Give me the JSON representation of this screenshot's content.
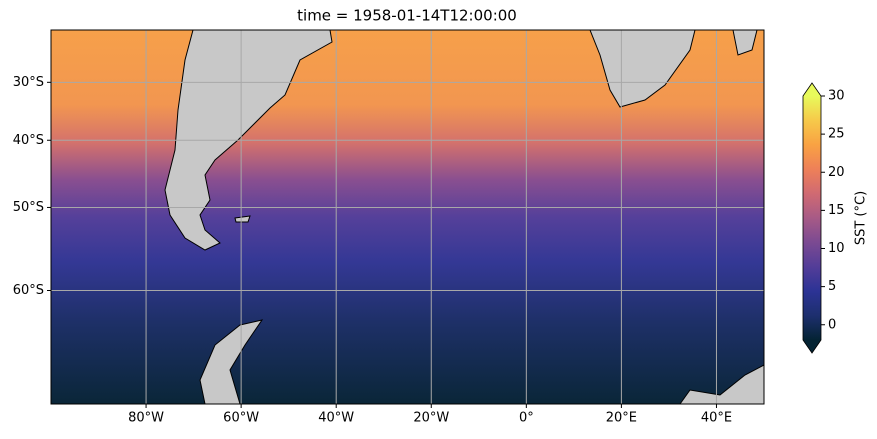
{
  "chart_data": {
    "type": "map",
    "title": "time = 1958-01-14T12:00:00",
    "projection": "mercator",
    "xlim": [
      -100,
      50
    ],
    "ylim": [
      -70,
      -20
    ],
    "xticks": [
      {
        "value": -80,
        "label": "80°W"
      },
      {
        "value": -60,
        "label": "60°W"
      },
      {
        "value": -40,
        "label": "40°W"
      },
      {
        "value": -20,
        "label": "20°W"
      },
      {
        "value": 0,
        "label": "0°"
      },
      {
        "value": 20,
        "label": "20°E"
      },
      {
        "value": 40,
        "label": "40°E"
      }
    ],
    "yticks": [
      {
        "value": -30,
        "label": "30°S"
      },
      {
        "value": -40,
        "label": "40°S"
      },
      {
        "value": -50,
        "label": "50°S"
      },
      {
        "value": -60,
        "label": "60°S"
      }
    ],
    "grid": true,
    "colorbar": {
      "label": "SST (°C)",
      "lim": [
        -2,
        30
      ],
      "ticks": [
        0,
        5,
        10,
        15,
        20,
        25,
        30
      ],
      "extend": "both",
      "colors": [
        "#042333",
        "#1d2f6e",
        "#2c3395",
        "#533d98",
        "#7b4a92",
        "#a75a86",
        "#d06a72",
        "#ee8058",
        "#f9a243",
        "#f6c94a",
        "#e8fa5b"
      ]
    }
  }
}
